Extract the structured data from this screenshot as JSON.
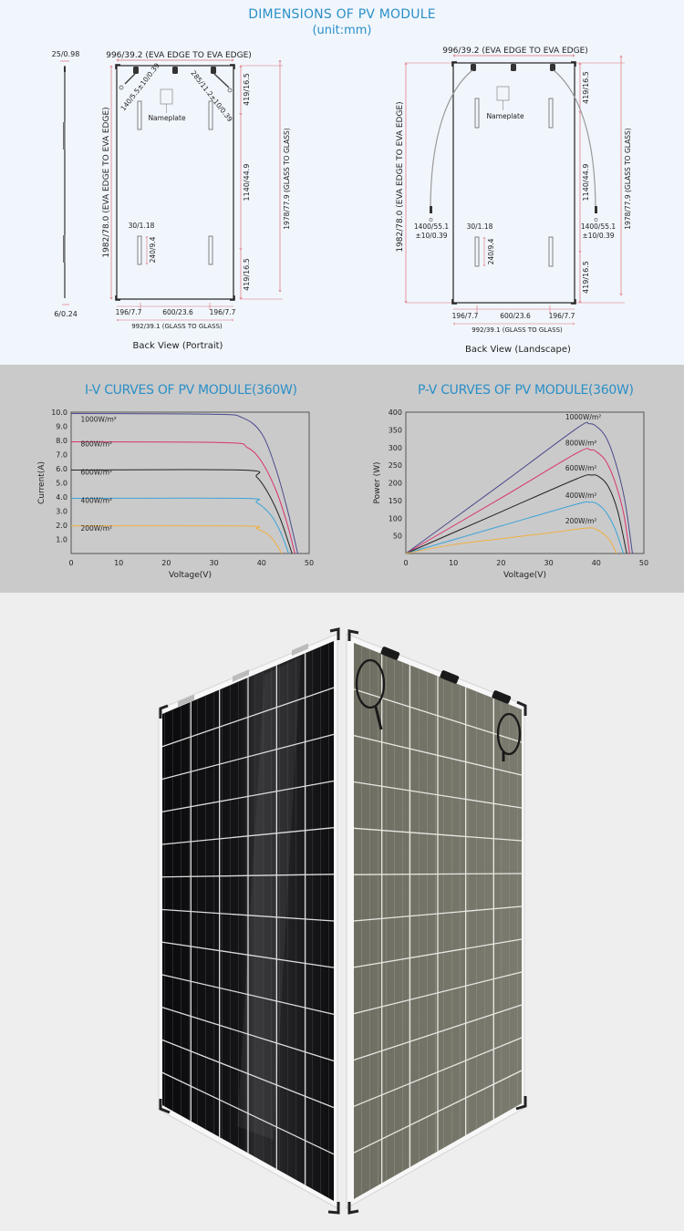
{
  "header": {
    "title": "DIMENSIONS OF PV MODULE",
    "unit": "(unit:mm)"
  },
  "colors": {
    "title_blue": "#2a8fc8",
    "dim_red": "#e0707a",
    "curve_1000": "#4b4a8c",
    "curve_800": "#d8336f",
    "curve_600": "#222222",
    "curve_400": "#3aa3d8",
    "curve_200": "#f0b040"
  },
  "portrait": {
    "caption": "Back View (Portrait)",
    "side_top_dim": "25/0.98",
    "side_bottom_dim": "6/0.24",
    "top_width": "996/39.2 (EVA EDGE TO EVA EDGE)",
    "height_eva": "1982/78.0 (EVA EDGE TO EVA EDGE)",
    "height_glass": "1978/77.9 (GLASS TO GLASS)",
    "cable_left": "140/5.5±10/0.39",
    "cable_right": "285/11.2±10/0.39",
    "top_offset": "419/16.5",
    "mid_span": "1140/44.9",
    "bottom_offset": "419/16.5",
    "clip_width": "30/1.18",
    "clip_height": "240/9.4",
    "nameplate": "Nameplate",
    "bottom_left": "196/7.7",
    "bottom_mid": "600/23.6",
    "bottom_right": "196/7.7",
    "bottom_width": "992/39.1 (GLASS TO GLASS)"
  },
  "landscape": {
    "caption": "Back View (Landscape)",
    "top_width": "996/39.2 (EVA EDGE TO EVA EDGE)",
    "height_eva": "1982/78.0 (EVA EDGE TO EVA EDGE)",
    "height_glass": "1978/77.9 (GLASS TO GLASS)",
    "cable_left_1": "1400/55.1",
    "cable_left_2": "±10/0.39",
    "cable_right_1": "1400/55.1",
    "cable_right_2": "±10/0.39",
    "top_offset": "419/16.5",
    "mid_span": "1140/44.9",
    "bottom_offset": "419/16.5",
    "clip_width": "30/1.18",
    "clip_height": "240/9.4",
    "nameplate": "Nameplate",
    "bottom_left": "196/7.7",
    "bottom_mid": "600/23.6",
    "bottom_right": "196/7.7",
    "bottom_width": "992/39.1 (GLASS TO GLASS)"
  },
  "chart_data": [
    {
      "type": "line",
      "title": "I-V CURVES OF PV MODULE(360W)",
      "xlabel": "Voltage(V)",
      "ylabel": "Current(A)",
      "xlim": [
        0,
        50
      ],
      "ylim": [
        0,
        10
      ],
      "x_ticks": [
        "0",
        "10",
        "20",
        "30",
        "40",
        "50"
      ],
      "y_ticks": [
        "1.0",
        "2.0",
        "3.0",
        "4.0",
        "5.0",
        "6.0",
        "7.0",
        "8.0",
        "9.0",
        "10.0"
      ],
      "grid": false,
      "series": [
        {
          "name": "1000W/m²",
          "color": "#4b4a8c",
          "isc": 9.9,
          "voc": 47.6,
          "knee": 38.5,
          "points": [
            [
              0,
              9.9
            ],
            [
              30,
              9.85
            ],
            [
              36,
              9.6
            ],
            [
              40,
              8.5
            ],
            [
              43,
              6.0
            ],
            [
              45.5,
              3.0
            ],
            [
              47.6,
              0
            ]
          ]
        },
        {
          "name": "800W/m²",
          "color": "#d8336f",
          "isc": 7.9,
          "voc": 47.0,
          "knee": 38.0,
          "points": [
            [
              0,
              7.9
            ],
            [
              32,
              7.85
            ],
            [
              37,
              7.5
            ],
            [
              40,
              6.5
            ],
            [
              43,
              4.5
            ],
            [
              45.3,
              2.2
            ],
            [
              47.0,
              0
            ]
          ]
        },
        {
          "name": "600W/m²",
          "color": "#222222",
          "isc": 5.9,
          "voc": 46.4,
          "knee": 37.5,
          "points": [
            [
              0,
              5.9
            ],
            [
              36,
              5.9
            ],
            [
              39,
              5.4
            ],
            [
              41.5,
              4.2
            ],
            [
              44,
              2.4
            ],
            [
              46.4,
              0
            ]
          ]
        },
        {
          "name": "400W/m²",
          "color": "#3aa3d8",
          "isc": 3.9,
          "voc": 45.7,
          "knee": 37.0,
          "points": [
            [
              0,
              3.9
            ],
            [
              36,
              3.9
            ],
            [
              39,
              3.6
            ],
            [
              42,
              2.7
            ],
            [
              44,
              1.5
            ],
            [
              45.7,
              0
            ]
          ]
        },
        {
          "name": "200W/m²",
          "color": "#f0b040",
          "isc": 1.95,
          "voc": 44.2,
          "knee": 36.0,
          "points": [
            [
              0,
              1.95
            ],
            [
              36,
              1.95
            ],
            [
              39,
              1.75
            ],
            [
              41.5,
              1.3
            ],
            [
              43.2,
              0.6
            ],
            [
              44.2,
              0
            ]
          ]
        }
      ]
    },
    {
      "type": "line",
      "title": "P-V CURVES OF PV MODULE(360W)",
      "xlabel": "Voltage(V)",
      "ylabel": "Power (W)",
      "xlim": [
        0,
        50
      ],
      "ylim": [
        0,
        400
      ],
      "x_ticks": [
        "0",
        "10",
        "20",
        "30",
        "40",
        "50"
      ],
      "y_ticks": [
        "50",
        "100",
        "150",
        "200",
        "250",
        "300",
        "350",
        "400"
      ],
      "grid": false,
      "series": [
        {
          "name": "1000W/m²",
          "color": "#4b4a8c",
          "pmax": 367,
          "vmp": 38.5,
          "voc": 47.6,
          "points": [
            [
              0,
              0
            ],
            [
              20,
              196
            ],
            [
              36,
              355
            ],
            [
              38.5,
              367
            ],
            [
              40,
              360
            ],
            [
              42,
              330
            ],
            [
              44,
              260
            ],
            [
              46,
              150
            ],
            [
              47.6,
              0
            ]
          ]
        },
        {
          "name": "800W/m²",
          "color": "#d8336f",
          "pmax": 293,
          "vmp": 38.8,
          "voc": 47.0,
          "points": [
            [
              0,
              0
            ],
            [
              20,
              157
            ],
            [
              36,
              285
            ],
            [
              38.8,
              293
            ],
            [
              40,
              288
            ],
            [
              42,
              262
            ],
            [
              44,
              200
            ],
            [
              45.8,
              110
            ],
            [
              47.0,
              0
            ]
          ]
        },
        {
          "name": "600W/m²",
          "color": "#222222",
          "pmax": 222,
          "vmp": 39.0,
          "voc": 46.4,
          "points": [
            [
              0,
              0
            ],
            [
              20,
              118
            ],
            [
              36,
              212
            ],
            [
              39,
              222
            ],
            [
              40.5,
              218
            ],
            [
              42.5,
              190
            ],
            [
              44.5,
              120
            ],
            [
              46.4,
              0
            ]
          ]
        },
        {
          "name": "400W/m²",
          "color": "#3aa3d8",
          "pmax": 145,
          "vmp": 38.5,
          "voc": 45.7,
          "points": [
            [
              0,
              0
            ],
            [
              20,
              78
            ],
            [
              36,
              140
            ],
            [
              38.5,
              145
            ],
            [
              40,
              142
            ],
            [
              42,
              118
            ],
            [
              44,
              68
            ],
            [
              45.7,
              0
            ]
          ]
        },
        {
          "name": "200W/m²",
          "color": "#f0b040",
          "pmax": 72,
          "vmp": 38.0,
          "voc": 44.2,
          "points": [
            [
              0,
              0
            ],
            [
              10,
              25
            ],
            [
              20,
              42
            ],
            [
              30,
              58
            ],
            [
              38,
              72
            ],
            [
              40,
              68
            ],
            [
              42,
              50
            ],
            [
              43.5,
              22
            ],
            [
              44.2,
              0
            ]
          ]
        }
      ]
    }
  ],
  "photo": {
    "description": "Bifacial dual-glass PV module, front (black cells) and back (transparent, grey-green) views"
  }
}
